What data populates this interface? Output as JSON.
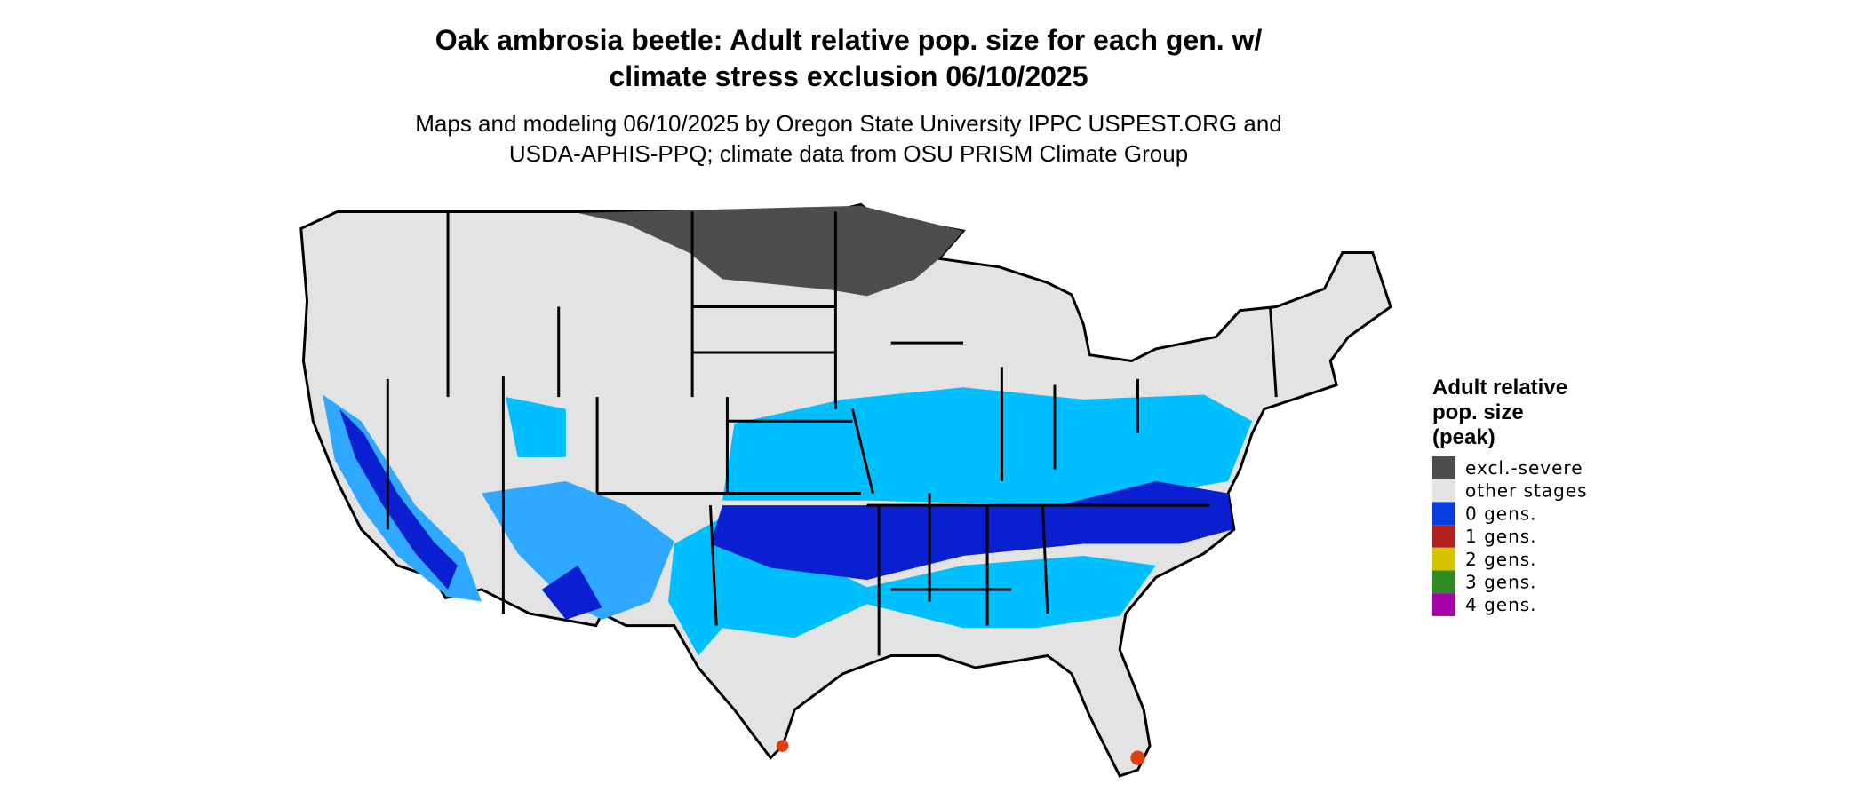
{
  "title": [
    "Oak ambrosia beetle: Adult relative pop. size for each gen. w/",
    "climate stress exclusion 06/10/2025"
  ],
  "subtitle": [
    "Maps and modeling 06/10/2025 by Oregon State University IPPC USPEST.ORG and",
    "USDA-APHIS-PPQ; climate data from OSU PRISM Climate Group"
  ],
  "legend": {
    "title": [
      "Adult relative",
      "pop. size",
      "(peak)"
    ],
    "items": [
      {
        "label": "excl.-severe",
        "color": "#4d4d4d"
      },
      {
        "label": "other stages",
        "color": "#e3e3e3"
      },
      {
        "label": "0 gens.",
        "color": "#0a3de0"
      },
      {
        "label": "1 gens.",
        "color": "#b22222"
      },
      {
        "label": "2 gens.",
        "color": "#d4c400"
      },
      {
        "label": "3 gens.",
        "color": "#2e8b22"
      },
      {
        "label": "4 gens.",
        "color": "#a800a8"
      }
    ]
  }
}
